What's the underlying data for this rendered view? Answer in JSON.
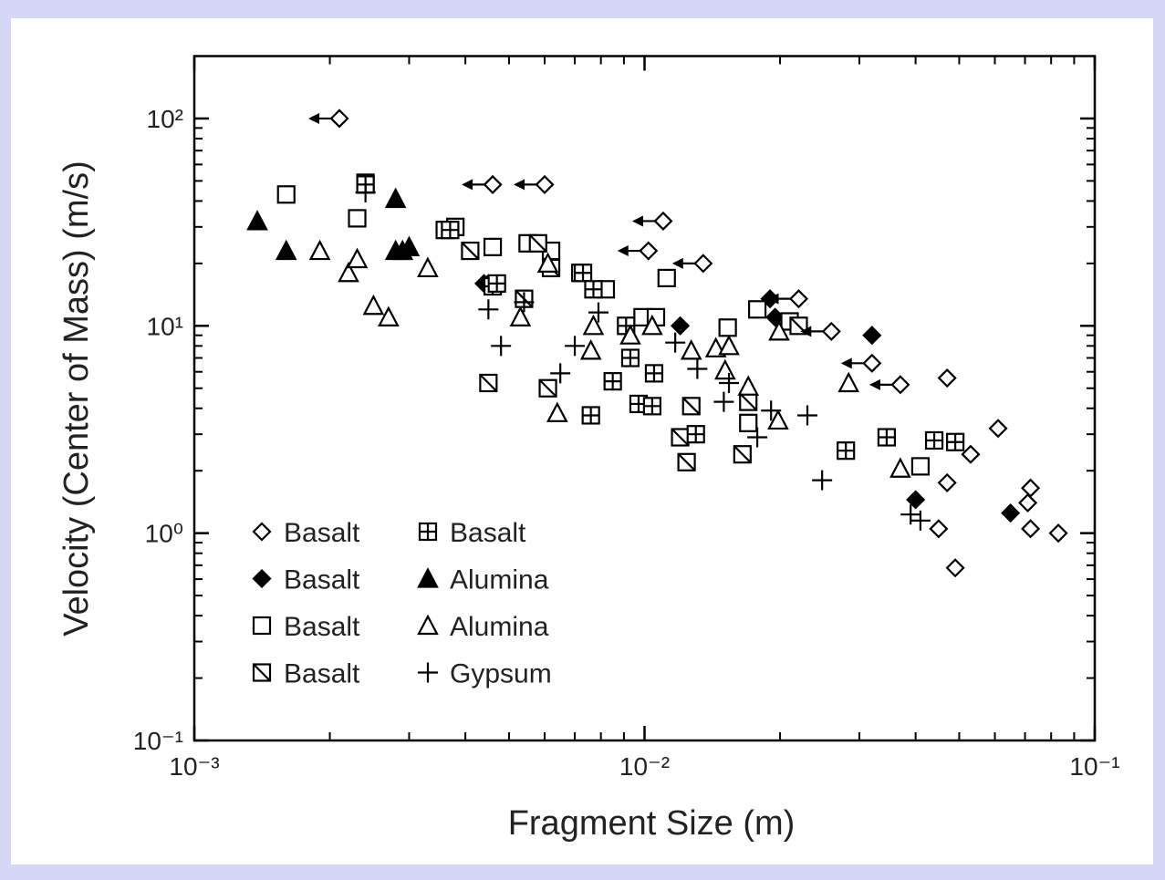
{
  "chart_data": {
    "type": "scatter",
    "x_label": "Fragment Size (m)",
    "y_label": "Velocity (Center of Mass) (m/s)",
    "log_x": true,
    "log_y": true,
    "xlim": [
      0.001,
      0.1
    ],
    "ylim": [
      0.1,
      200
    ],
    "xticks": [
      {
        "value": 0.001,
        "label": "10⁻³"
      },
      {
        "value": 0.01,
        "label": "10⁻²"
      },
      {
        "value": 0.1,
        "label": "10⁻¹"
      }
    ],
    "yticks": [
      {
        "value": 0.1,
        "label": "10⁻¹"
      },
      {
        "value": 1,
        "label": "10⁰"
      },
      {
        "value": 10,
        "label": "10¹"
      },
      {
        "value": 100,
        "label": "10²"
      }
    ],
    "xminorticks": [
      0.002,
      0.003,
      0.004,
      0.005,
      0.006,
      0.007,
      0.008,
      0.009,
      0.02,
      0.03,
      0.04,
      0.05,
      0.06,
      0.07,
      0.08,
      0.09
    ],
    "yminorticks": [
      0.2,
      0.3,
      0.4,
      0.5,
      0.6,
      0.7,
      0.8,
      0.9,
      2,
      3,
      4,
      5,
      6,
      7,
      8,
      9,
      20,
      30,
      40,
      50,
      60,
      70,
      80,
      90,
      200
    ],
    "legend": "lower left",
    "series": [
      {
        "name": "Basalt",
        "marker": "diamond-open",
        "color": "#000000",
        "x": [
          0.047,
          0.061,
          0.053,
          0.047,
          0.045,
          0.049,
          0.072,
          0.071,
          0.072,
          0.083
        ],
        "y": [
          5.6,
          3.2,
          2.4,
          1.75,
          1.05,
          0.68,
          1.65,
          1.4,
          1.05,
          1.0
        ]
      },
      {
        "name": "Basalt",
        "marker": "diamond-filled",
        "color": "#000000",
        "x": [
          0.012,
          0.019,
          0.0195,
          0.032,
          0.04,
          0.065,
          0.0044,
          0.0045
        ],
        "y": [
          10,
          13.5,
          11,
          9,
          1.45,
          1.25,
          16,
          16
        ]
      },
      {
        "name": "Basalt",
        "marker": "square-open",
        "color": "#000000",
        "x": [
          0.0016,
          0.0024,
          0.0023,
          0.0036,
          0.0038,
          0.0046,
          0.0055,
          0.0062,
          0.0072,
          0.0082,
          0.0112,
          0.0099,
          0.0106,
          0.0178,
          0.041,
          0.0153,
          0.017,
          0.021
        ],
        "y": [
          43,
          49,
          33,
          29,
          30,
          24,
          25,
          23,
          18,
          15,
          17,
          11,
          11,
          12,
          2.1,
          9.8,
          3.4,
          10.5
        ]
      },
      {
        "name": "Basalt",
        "marker": "square-hatched",
        "color": "#000000",
        "x": [
          0.0045,
          0.0061,
          0.0054,
          0.0062,
          0.0124,
          0.012,
          0.0127,
          0.0165,
          0.017,
          0.022,
          0.0058,
          0.0041
        ],
        "y": [
          5.3,
          5,
          13.5,
          19,
          2.2,
          2.9,
          4.1,
          2.4,
          4.3,
          10,
          25,
          23
        ]
      },
      {
        "name": "Basalt",
        "marker": "square-cross",
        "color": "#000000",
        "x": [
          0.0024,
          0.0037,
          0.0046,
          0.0076,
          0.0085,
          0.0093,
          0.0091,
          0.0105,
          0.0097,
          0.0104,
          0.013,
          0.028,
          0.0345,
          0.044,
          0.049,
          0.0073,
          0.0077,
          0.0047
        ],
        "y": [
          48,
          29,
          15.5,
          3.7,
          5.4,
          7,
          10,
          5.9,
          4.2,
          4.1,
          3,
          2.5,
          2.9,
          2.8,
          2.75,
          18,
          15,
          16
        ]
      },
      {
        "name": "Alumina",
        "marker": "triangle-filled",
        "color": "#000000",
        "x": [
          0.00138,
          0.0016,
          0.0028,
          0.0028,
          0.003,
          0.0029
        ],
        "y": [
          32,
          23,
          41,
          23,
          24,
          23
        ]
      },
      {
        "name": "Alumina",
        "marker": "triangle-open",
        "color": "#000000",
        "x": [
          0.0019,
          0.0022,
          0.0023,
          0.0025,
          0.0027,
          0.0033,
          0.0053,
          0.0064,
          0.0076,
          0.0077,
          0.0093,
          0.0104,
          0.0127,
          0.0144,
          0.0154,
          0.0151,
          0.017,
          0.0198,
          0.0199,
          0.0284,
          0.037,
          0.0061
        ],
        "y": [
          23,
          18,
          21,
          12.5,
          11,
          19,
          11,
          3.8,
          7.6,
          10,
          9,
          10,
          7.6,
          7.8,
          8,
          6.1,
          5.1,
          3.5,
          9.4,
          5.3,
          2.05,
          20
        ]
      },
      {
        "name": "Gypsum",
        "marker": "plus",
        "color": "#000000",
        "x": [
          0.0024,
          0.0045,
          0.0048,
          0.0065,
          0.007,
          0.0079,
          0.0117,
          0.0131,
          0.015,
          0.0154,
          0.0178,
          0.0191,
          0.023,
          0.0248,
          0.039,
          0.041,
          0.0054
        ],
        "y": [
          44,
          12,
          8,
          5.9,
          8,
          11.6,
          8.3,
          6.2,
          4.3,
          5.3,
          2.9,
          3.9,
          3.7,
          1.8,
          1.23,
          1.15,
          13
        ]
      },
      {
        "marker": "diamond-arrow",
        "color": "#000000",
        "x": [
          0.0021,
          0.0046,
          0.006,
          0.011,
          0.0102,
          0.0135,
          0.022,
          0.026,
          0.032,
          0.037
        ],
        "y": [
          100,
          48,
          48,
          32,
          23,
          20,
          13.5,
          9.4,
          6.6,
          5.2
        ]
      }
    ]
  }
}
